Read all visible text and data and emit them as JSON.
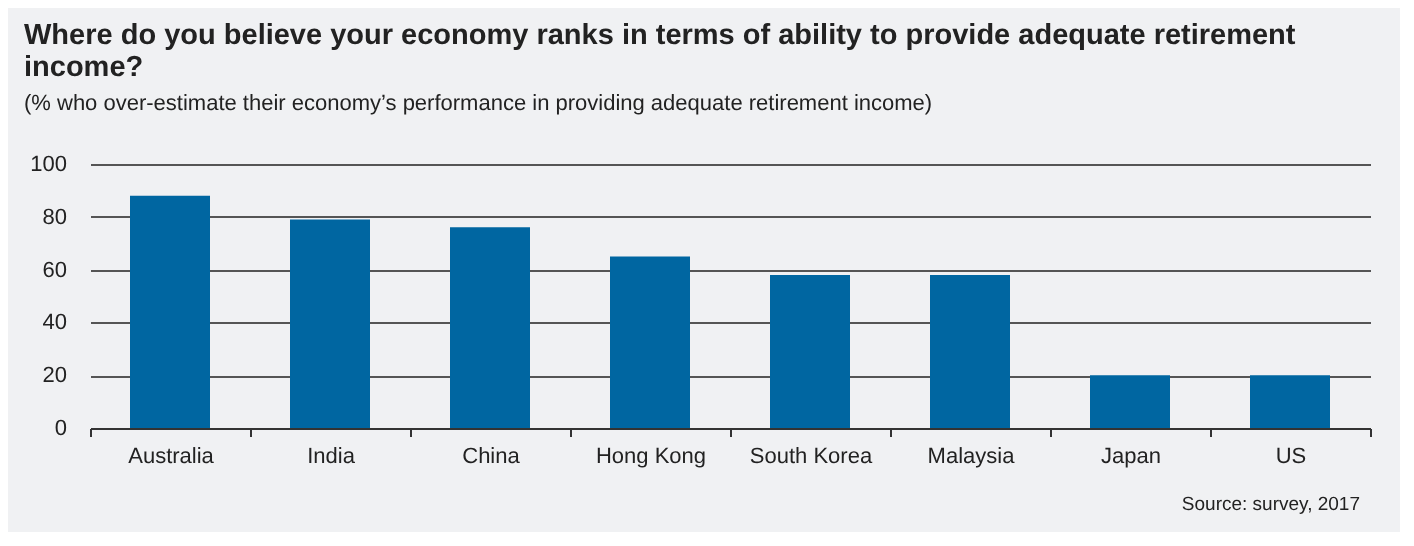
{
  "chart_data": {
    "type": "bar",
    "title": "Where do you believe your economy ranks in terms of ability to provide adequate retirement income?",
    "subtitle": "(% who over-estimate their economy’s performance in providing adequate retirement income)",
    "categories": [
      "Australia",
      "India",
      "China",
      "Hong Kong",
      "South Korea",
      "Malaysia",
      "Japan",
      "US"
    ],
    "values": [
      88,
      79,
      76,
      65,
      58,
      58,
      20,
      20
    ],
    "color": "#0066a1",
    "ylim": [
      0,
      100
    ],
    "yticks": [
      0,
      20,
      40,
      60,
      80,
      100
    ],
    "grid": "y",
    "annotations": [
      "Source: survey, 2017"
    ]
  }
}
